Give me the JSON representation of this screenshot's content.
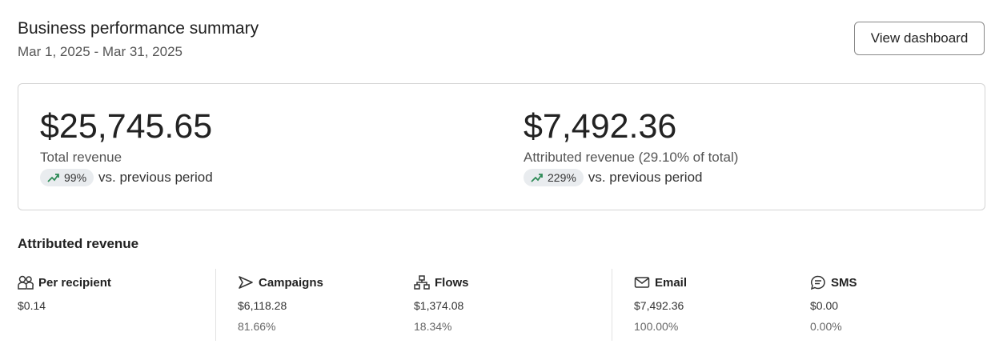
{
  "header": {
    "title": "Business performance summary",
    "date_range": "Mar 1, 2025 - Mar 31, 2025",
    "view_dashboard": "View dashboard"
  },
  "summary": [
    {
      "value": "$25,745.65",
      "label": "Total revenue",
      "change": "99%",
      "change_suffix": "vs. previous period"
    },
    {
      "value": "$7,492.36",
      "label": "Attributed revenue (29.10% of total)",
      "change": "229%",
      "change_suffix": "vs. previous period"
    }
  ],
  "colors": {
    "trend_up": "#2e8b57"
  },
  "attributed": {
    "title": "Attributed revenue",
    "items": [
      {
        "label": "Per recipient",
        "icon": "people-icon",
        "value": "$0.14"
      },
      {
        "label": "Campaigns",
        "icon": "send-icon",
        "value": "$6,118.28",
        "percent": "81.66%"
      },
      {
        "label": "Flows",
        "icon": "flow-icon",
        "value": "$1,374.08",
        "percent": "18.34%"
      },
      {
        "label": "Email",
        "icon": "mail-icon",
        "value": "$7,492.36",
        "percent": "100.00%"
      },
      {
        "label": "SMS",
        "icon": "sms-icon",
        "value": "$0.00",
        "percent": "0.00%"
      }
    ]
  }
}
